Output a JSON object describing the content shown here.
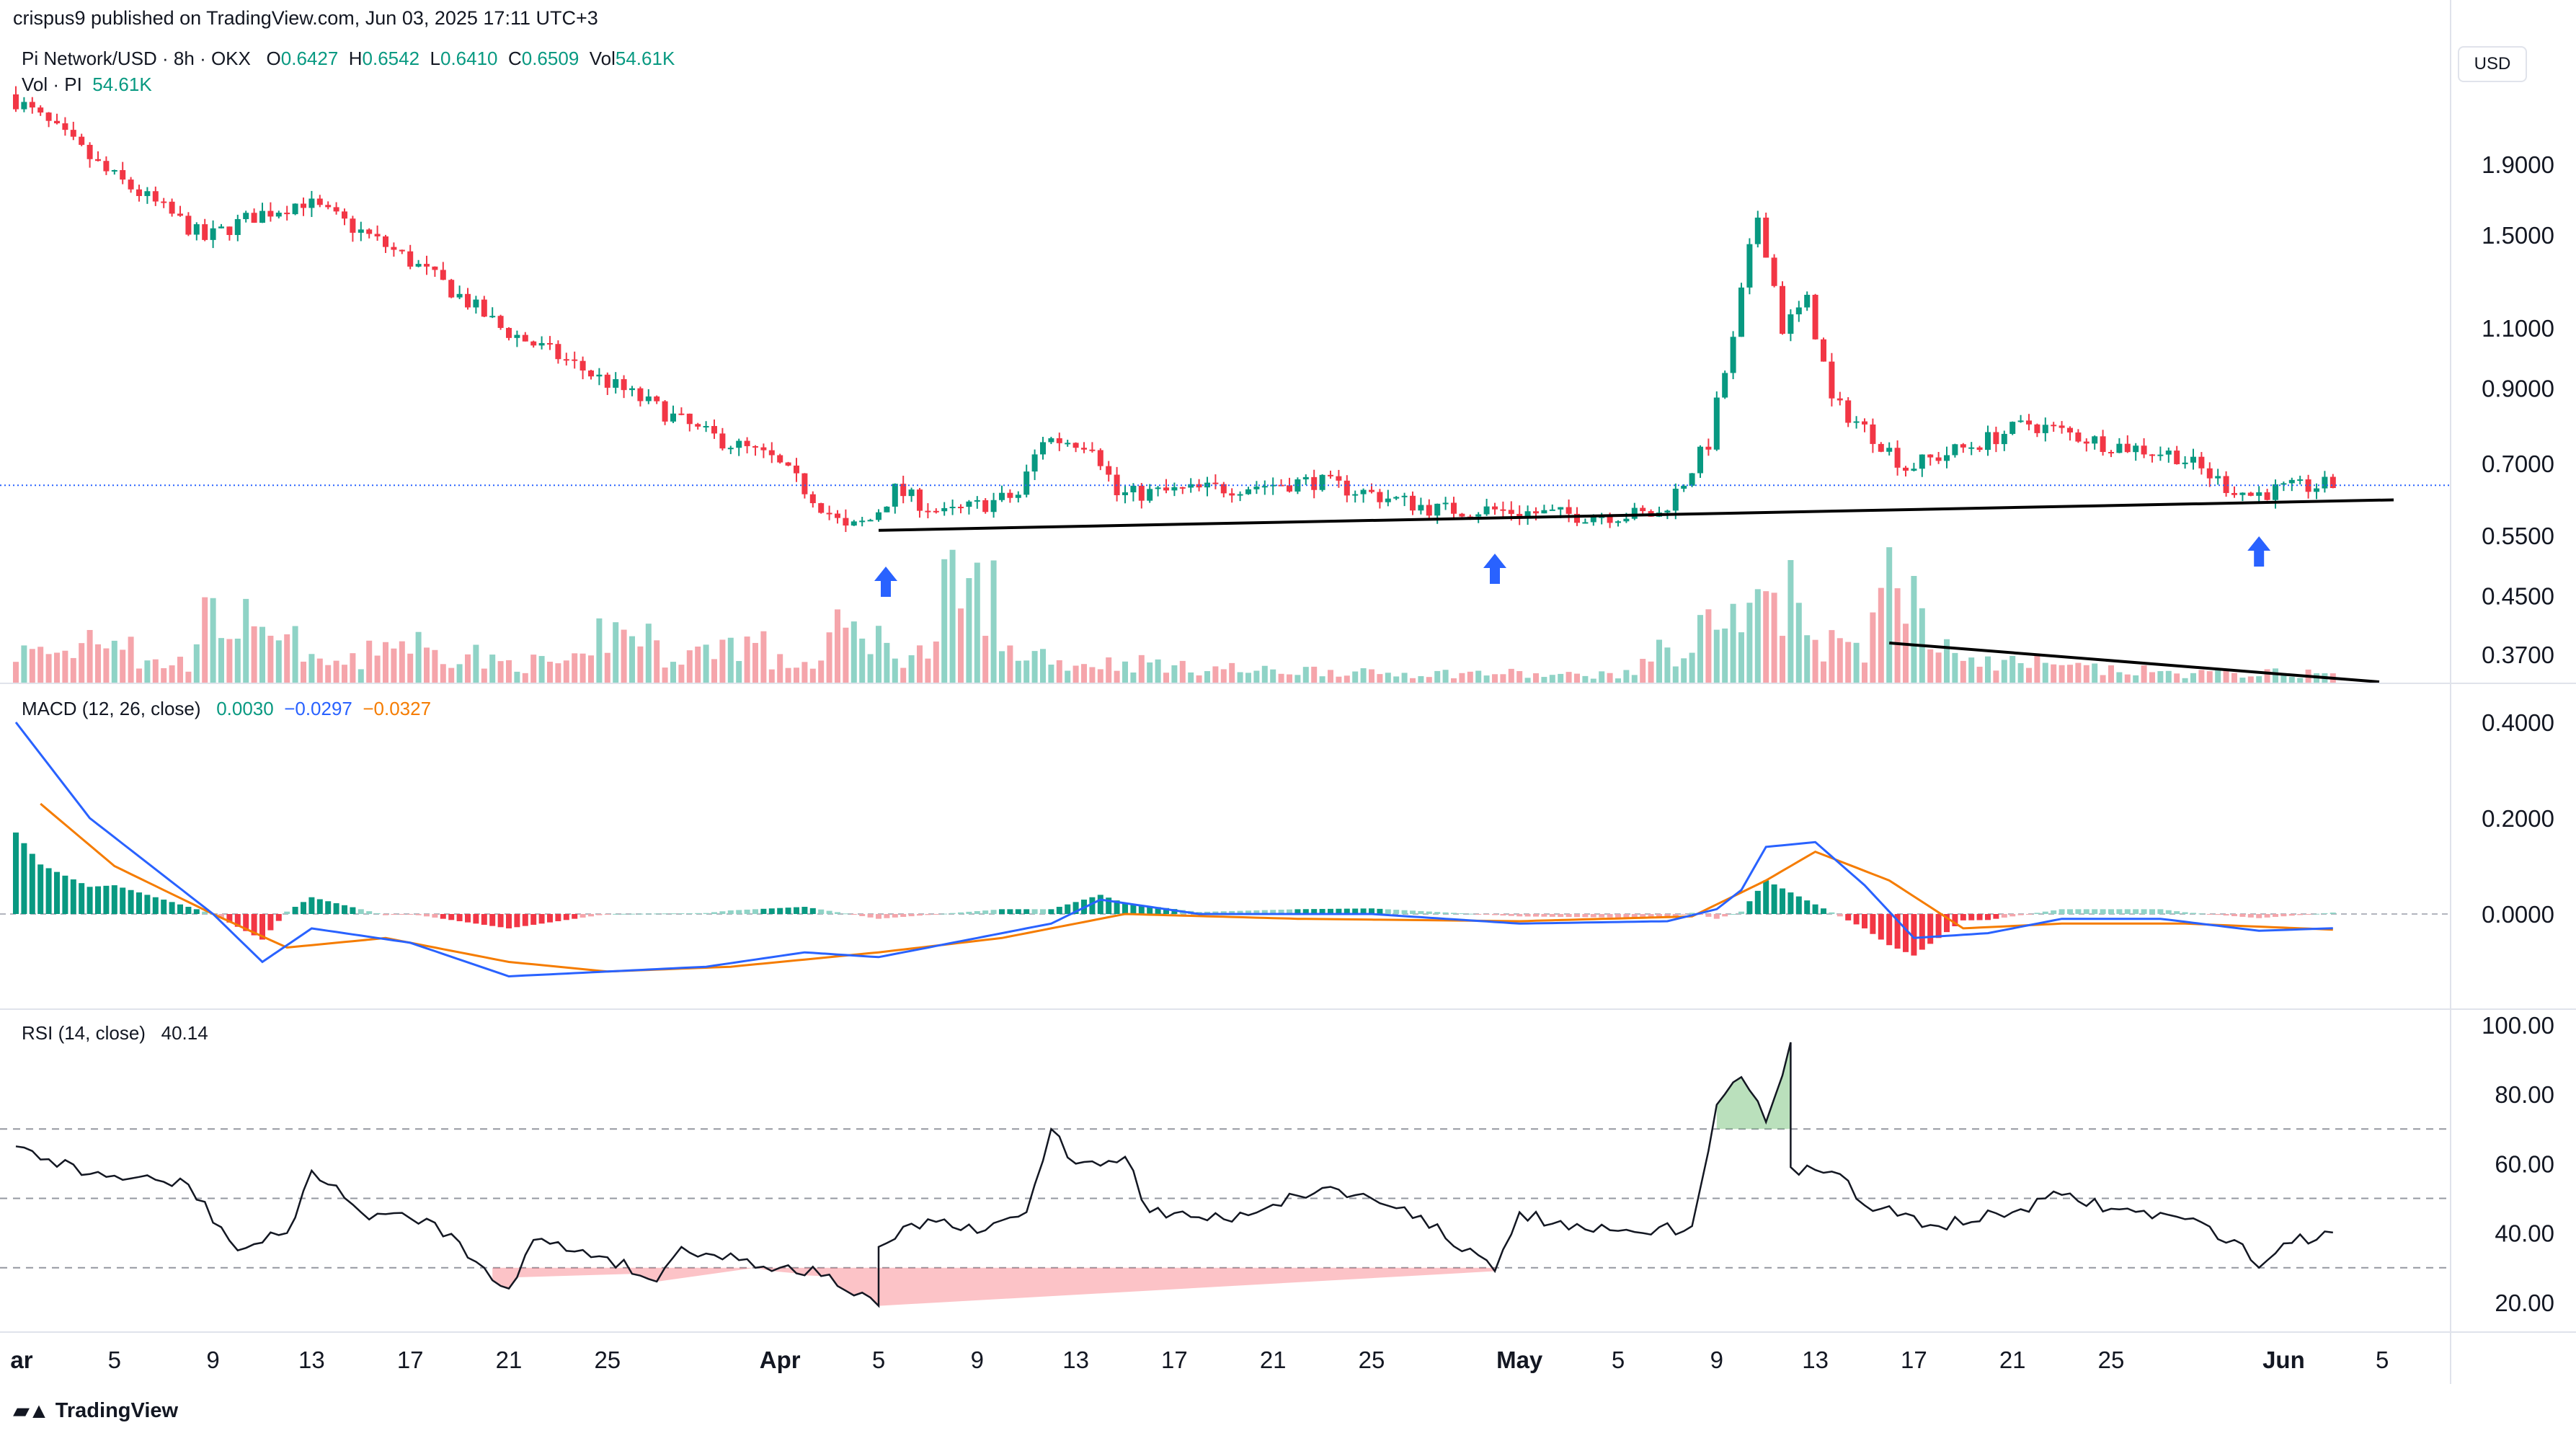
{
  "header": {
    "published": "crispus9 published on TradingView.com, Jun 03, 2025 17:11 UTC+3"
  },
  "legend": {
    "symbol": "Pi Network/USD · 8h · OKX",
    "o_label": "O",
    "o_value": "0.6427",
    "h_label": "H",
    "h_value": "0.6542",
    "l_label": "L",
    "l_value": "0.6410",
    "c_label": "C",
    "c_value": "0.6509",
    "vol_label": "Vol",
    "vol_value": "54.61K",
    "vol_pi_label": "Vol · PI",
    "vol_pi_value": "54.61K",
    "macd_label": "MACD (12, 26, close)",
    "macd_v1": "0.0030",
    "macd_v2": "−0.0297",
    "macd_v3": "−0.0327",
    "rsi_label": "RSI (14, close)",
    "rsi_value": "40.14"
  },
  "currency_button": "USD",
  "brand": "TradingView",
  "colors": {
    "up": "#089981",
    "down": "#f23645",
    "vol_up": "#8fd3c6",
    "vol_down": "#f5a5ab",
    "macd_line": "#2962ff",
    "signal_line": "#f57c00",
    "rsi_line": "#131722",
    "arrow": "#2962ff",
    "price_line": "#2962ff"
  },
  "chart_data": {
    "type": "candlestick",
    "title": "Pi Network/USD · 8h · OKX",
    "price_axis": {
      "scale": "log",
      "ticks": [
        "0.3700",
        "0.4500",
        "0.5500",
        "0.7000",
        "0.9000",
        "1.1000",
        "1.5000",
        "1.9000"
      ]
    },
    "x_ticks": [
      "ar",
      "5",
      "9",
      "13",
      "17",
      "21",
      "25",
      "Apr",
      "5",
      "9",
      "13",
      "17",
      "21",
      "25",
      "May",
      "5",
      "9",
      "13",
      "17",
      "21",
      "25",
      "Jun",
      "5"
    ],
    "price_anchors": [
      [
        "2025-03-01",
        2.4
      ],
      [
        "2025-03-05",
        1.85
      ],
      [
        "2025-03-09",
        1.48
      ],
      [
        "2025-03-11",
        1.6
      ],
      [
        "2025-03-13",
        1.68
      ],
      [
        "2025-03-17",
        1.4
      ],
      [
        "2025-03-21",
        1.1
      ],
      [
        "2025-03-25",
        0.93
      ],
      [
        "2025-03-29",
        0.78
      ],
      [
        "2025-04-01",
        0.71
      ],
      [
        "2025-04-04",
        0.56
      ],
      [
        "2025-04-05",
        0.58
      ],
      [
        "2025-04-06",
        0.64
      ],
      [
        "2025-04-08",
        0.59
      ],
      [
        "2025-04-11",
        0.63
      ],
      [
        "2025-04-12",
        0.76
      ],
      [
        "2025-04-14",
        0.75
      ],
      [
        "2025-04-15",
        0.63
      ],
      [
        "2025-04-18",
        0.64
      ],
      [
        "2025-04-23",
        0.66
      ],
      [
        "2025-04-28",
        0.6
      ],
      [
        "2025-04-30",
        0.6
      ],
      [
        "2025-05-03",
        0.59
      ],
      [
        "2025-05-07",
        0.59
      ],
      [
        "2025-05-08",
        0.66
      ],
      [
        "2025-05-09",
        0.75
      ],
      [
        "2025-05-10",
        1.05
      ],
      [
        "2025-05-11",
        1.6
      ],
      [
        "2025-05-12",
        1.1
      ],
      [
        "2025-05-13",
        1.2
      ],
      [
        "2025-05-14",
        0.86
      ],
      [
        "2025-05-16",
        0.75
      ],
      [
        "2025-05-17",
        0.69
      ],
      [
        "2025-05-20",
        0.75
      ],
      [
        "2025-05-22",
        0.8
      ],
      [
        "2025-05-25",
        0.75
      ],
      [
        "2025-05-28",
        0.72
      ],
      [
        "2025-05-30",
        0.65
      ],
      [
        "2025-05-31",
        0.63
      ],
      [
        "2025-06-01",
        0.64
      ],
      [
        "2025-06-03",
        0.6509
      ]
    ],
    "volume_heights_relative": [
      3,
      5,
      2,
      6,
      4,
      2,
      4,
      3,
      2,
      2,
      5,
      3,
      4,
      2,
      5,
      3,
      9,
      3,
      2,
      2,
      1.5,
      1.2,
      1.3,
      1,
      1,
      1,
      0.8,
      0.9,
      3,
      6,
      9,
      4,
      10,
      3,
      2,
      1.5,
      1.2,
      1,
      1,
      1,
      1
    ],
    "macd_anchors": [
      [
        "2025-03-01",
        0.4
      ],
      [
        "2025-03-04",
        0.2
      ],
      [
        "2025-03-07",
        0.08
      ],
      [
        "2025-03-09",
        0.0
      ],
      [
        "2025-03-11",
        -0.1
      ],
      [
        "2025-03-13",
        -0.03
      ],
      [
        "2025-03-17",
        -0.06
      ],
      [
        "2025-03-21",
        -0.13
      ],
      [
        "2025-03-25",
        -0.12
      ],
      [
        "2025-03-29",
        -0.11
      ],
      [
        "2025-04-02",
        -0.08
      ],
      [
        "2025-04-05",
        -0.09
      ],
      [
        "2025-04-08",
        -0.06
      ],
      [
        "2025-04-12",
        -0.02
      ],
      [
        "2025-04-14",
        0.03
      ],
      [
        "2025-04-18",
        0.0
      ],
      [
        "2025-04-25",
        0.0
      ],
      [
        "2025-05-01",
        -0.02
      ],
      [
        "2025-05-07",
        -0.015
      ],
      [
        "2025-05-09",
        0.01
      ],
      [
        "2025-05-10",
        0.05
      ],
      [
        "2025-05-11",
        0.14
      ],
      [
        "2025-05-13",
        0.15
      ],
      [
        "2025-05-15",
        0.06
      ],
      [
        "2025-05-17",
        -0.05
      ],
      [
        "2025-05-20",
        -0.04
      ],
      [
        "2025-05-23",
        -0.01
      ],
      [
        "2025-05-27",
        -0.01
      ],
      [
        "2025-05-31",
        -0.035
      ],
      [
        "2025-06-03",
        -0.0297
      ]
    ],
    "signal_anchors": [
      [
        "2025-03-02",
        0.23
      ],
      [
        "2025-03-05",
        0.1
      ],
      [
        "2025-03-09",
        0.0
      ],
      [
        "2025-03-12",
        -0.07
      ],
      [
        "2025-03-16",
        -0.05
      ],
      [
        "2025-03-21",
        -0.1
      ],
      [
        "2025-03-25",
        -0.12
      ],
      [
        "2025-03-30",
        -0.11
      ],
      [
        "2025-04-05",
        -0.08
      ],
      [
        "2025-04-10",
        -0.05
      ],
      [
        "2025-04-15",
        0.0
      ],
      [
        "2025-04-22",
        -0.01
      ],
      [
        "2025-05-01",
        -0.015
      ],
      [
        "2025-05-08",
        -0.005
      ],
      [
        "2025-05-11",
        0.07
      ],
      [
        "2025-05-13",
        0.13
      ],
      [
        "2025-05-16",
        0.07
      ],
      [
        "2025-05-19",
        -0.03
      ],
      [
        "2025-05-23",
        -0.02
      ],
      [
        "2025-05-28",
        -0.02
      ],
      [
        "2025-06-03",
        -0.0327
      ]
    ],
    "macd_axis": {
      "ticks": [
        "0.4000",
        "0.2000",
        "0.0000"
      ]
    },
    "rsi_anchors": [
      [
        "2025-03-01",
        65
      ],
      [
        "2025-03-04",
        57
      ],
      [
        "2025-03-08",
        54
      ],
      [
        "2025-03-10",
        35
      ],
      [
        "2025-03-12",
        40
      ],
      [
        "2025-03-13",
        58
      ],
      [
        "2025-03-15",
        46
      ],
      [
        "2025-03-18",
        43
      ],
      [
        "2025-03-20",
        30
      ],
      [
        "2025-03-21",
        24
      ],
      [
        "2025-03-22",
        38
      ],
      [
        "2025-03-25",
        33
      ],
      [
        "2025-03-27",
        26
      ],
      [
        "2025-03-28",
        36
      ],
      [
        "2025-04-01",
        30
      ],
      [
        "2025-04-03",
        28
      ],
      [
        "2025-04-04",
        22
      ],
      [
        "2025-04-05",
        19
      ],
      [
        "2025-04-05",
        36
      ],
      [
        "2025-04-07",
        44
      ],
      [
        "2025-04-09",
        40
      ],
      [
        "2025-04-11",
        46
      ],
      [
        "2025-04-12",
        70
      ],
      [
        "2025-04-13",
        60
      ],
      [
        "2025-04-15",
        62
      ],
      [
        "2025-04-16",
        46
      ],
      [
        "2025-04-19",
        44
      ],
      [
        "2025-04-23",
        53
      ],
      [
        "2025-04-25",
        50
      ],
      [
        "2025-04-27",
        45
      ],
      [
        "2025-04-30",
        29
      ],
      [
        "2025-05-01",
        46
      ],
      [
        "2025-05-03",
        41
      ],
      [
        "2025-05-06",
        40
      ],
      [
        "2025-05-08",
        42
      ],
      [
        "2025-05-09",
        77
      ],
      [
        "2025-05-10",
        85
      ],
      [
        "2025-05-11",
        72
      ],
      [
        "2025-05-12",
        95
      ],
      [
        "2025-05-12",
        59
      ],
      [
        "2025-05-14",
        57
      ],
      [
        "2025-05-15",
        48
      ],
      [
        "2025-05-18",
        42
      ],
      [
        "2025-05-21",
        46
      ],
      [
        "2025-05-23",
        51
      ],
      [
        "2025-05-25",
        47
      ],
      [
        "2025-05-28",
        44
      ],
      [
        "2025-05-30",
        38
      ],
      [
        "2025-05-31",
        30
      ],
      [
        "2025-06-01",
        37
      ],
      [
        "2025-06-03",
        40.14
      ]
    ],
    "rsi_axis": {
      "ticks": [
        "100.00",
        "80.00",
        "60.00",
        "40.00",
        "20.00"
      ],
      "levels": [
        70,
        50,
        30
      ]
    },
    "support_trendline": [
      [
        "2025-04-05",
        0.56
      ],
      [
        "2025-06-04",
        0.62
      ]
    ],
    "volume_trendline": "descending",
    "arrows": [
      "2025-04-05",
      "2025-04-30",
      "2025-05-31"
    ]
  }
}
